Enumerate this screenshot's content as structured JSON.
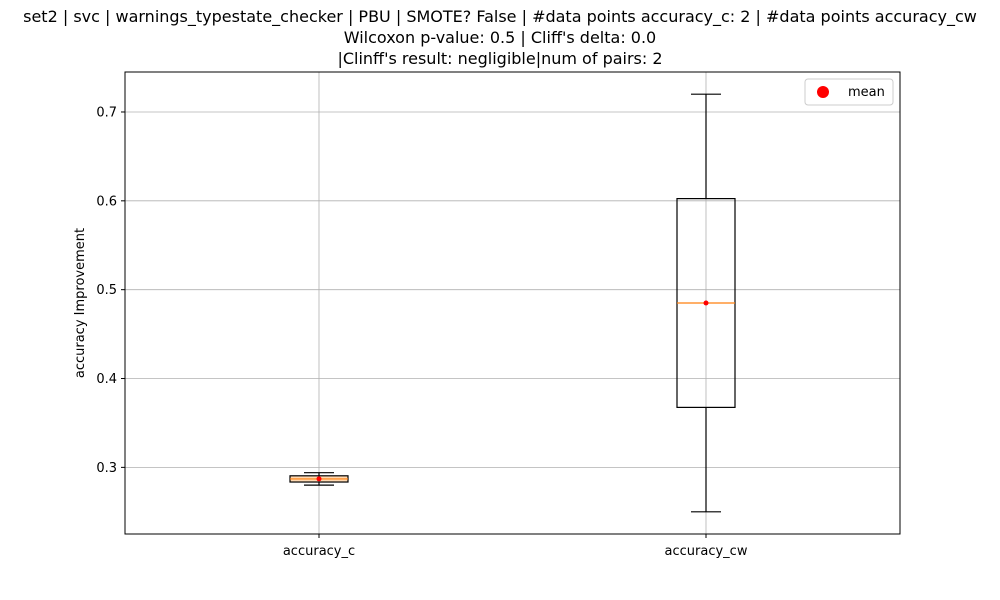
{
  "chart_data": {
    "type": "box",
    "title_lines": [
      "set2 | svc | warnings_typestate_checker | PBU | SMOTE? False | #data points accuracy_c: 2 | #data points accuracy_cw",
      "Wilcoxon p-value: 0.5 | Cliff's delta: 0.0",
      "|Clinff's result: negligible|num of pairs: 2"
    ],
    "xlabel": "",
    "ylabel": "accuracy Improvement",
    "categories": [
      "accuracy_c",
      "accuracy_cw"
    ],
    "ylim": [
      0.225,
      0.745
    ],
    "yticks": [
      0.3,
      0.4,
      0.5,
      0.6,
      0.7
    ],
    "ytick_labels": [
      "0.3",
      "0.4",
      "0.5",
      "0.6",
      "0.7"
    ],
    "boxes": [
      {
        "category": "accuracy_c",
        "whisker_low": 0.28,
        "q1": 0.2835,
        "median": 0.287,
        "q3": 0.2905,
        "whisker_high": 0.294,
        "mean": 0.287
      },
      {
        "category": "accuracy_cw",
        "whisker_low": 0.25,
        "q1": 0.3675,
        "median": 0.485,
        "q3": 0.6025,
        "whisker_high": 0.72,
        "mean": 0.485
      }
    ],
    "legend": {
      "label": "mean",
      "position": "top-right"
    },
    "grid": true,
    "colors": {
      "box": "#000000",
      "median": "#ff7f0e",
      "mean": "#ff0000",
      "grid": "#b0b0b0"
    }
  }
}
